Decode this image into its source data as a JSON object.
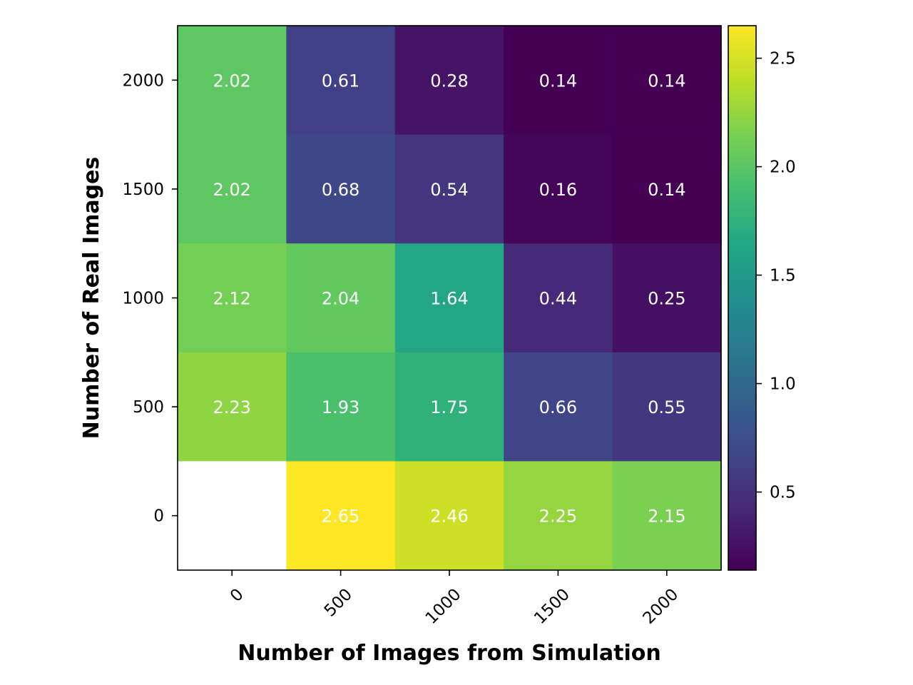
{
  "chart_data": {
    "type": "heatmap",
    "title": "",
    "xlabel": "Number of Images from Simulation",
    "ylabel": "Number of Real Images",
    "x_categories": [
      "0",
      "500",
      "1000",
      "1500",
      "2000"
    ],
    "y_categories": [
      "2000",
      "1500",
      "1000",
      "500",
      "0"
    ],
    "values": [
      [
        2.02,
        0.61,
        0.28,
        0.14,
        0.14
      ],
      [
        2.02,
        0.68,
        0.54,
        0.16,
        0.14
      ],
      [
        2.12,
        2.04,
        1.64,
        0.44,
        0.25
      ],
      [
        2.23,
        1.93,
        1.75,
        0.66,
        0.55
      ],
      [
        null,
        2.65,
        2.46,
        2.25,
        2.15
      ]
    ],
    "cell_labels": [
      [
        "2.02",
        "0.61",
        "0.28",
        "0.14",
        "0.14"
      ],
      [
        "2.02",
        "0.68",
        "0.54",
        "0.16",
        "0.14"
      ],
      [
        "2.12",
        "2.04",
        "1.64",
        "0.44",
        "0.25"
      ],
      [
        "2.23",
        "1.93",
        "1.75",
        "0.66",
        "0.55"
      ],
      [
        "",
        "2.65",
        "2.46",
        "2.25",
        "2.15"
      ]
    ],
    "colormap": "viridis",
    "color_range": [
      0.14,
      2.65
    ],
    "colorbar_ticks": [
      {
        "value": 0.5,
        "label": "0.5"
      },
      {
        "value": 1.0,
        "label": "1.0"
      },
      {
        "value": 1.5,
        "label": "1.5"
      },
      {
        "value": 2.0,
        "label": "2.0"
      },
      {
        "value": 2.5,
        "label": "2.5"
      }
    ],
    "cell_text_color": "#ffffff",
    "missing_color": "#ffffff",
    "x_tick_rotation_deg": -45
  }
}
